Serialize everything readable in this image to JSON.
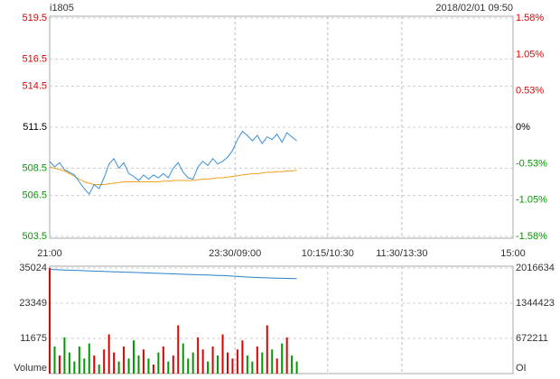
{
  "header": {
    "symbol": "i1805",
    "datetime": "2018/02/01 09:50"
  },
  "chart_data": [
    {
      "type": "line",
      "grid": true,
      "up_color": "#e00000",
      "down_color": "#009900",
      "neutral_color": "#000000",
      "xlim": [
        0,
        375
      ],
      "xticks": [
        {
          "value": 0,
          "label": "21:00"
        },
        {
          "value": 150,
          "label": "23:30/09:00"
        },
        {
          "value": 225,
          "label": "10:15/10:30"
        },
        {
          "value": 285,
          "label": "11:30/13:30"
        },
        {
          "value": 375,
          "label": "15:00"
        }
      ],
      "ylim": [
        503.5,
        519.5
      ],
      "yticks": [
        503.5,
        506.5,
        508.5,
        511.5,
        514.5,
        516.5,
        519.5
      ],
      "y2lim": [
        -1.58,
        1.58
      ],
      "y2ticks": [
        {
          "value": -1.58,
          "label": "-1.58%"
        },
        {
          "value": -1.05,
          "label": "-1.05%"
        },
        {
          "value": -0.53,
          "label": "-0.53%"
        },
        {
          "value": 0,
          "label": "0%"
        },
        {
          "value": 0.53,
          "label": "0.53%"
        },
        {
          "value": 1.05,
          "label": "1.05%"
        },
        {
          "value": 1.58,
          "label": "1.58%"
        }
      ],
      "x": [
        0,
        4,
        8,
        12,
        16,
        20,
        24,
        28,
        32,
        36,
        40,
        44,
        48,
        52,
        56,
        60,
        64,
        68,
        72,
        76,
        80,
        84,
        88,
        92,
        96,
        100,
        104,
        108,
        112,
        116,
        120,
        124,
        128,
        132,
        136,
        140,
        144,
        148,
        152,
        156,
        160,
        164,
        168,
        172,
        176,
        180,
        184,
        188,
        192,
        196,
        200
      ],
      "series": [
        {
          "color": "#3a8fd6",
          "values": [
            509.0,
            508.6,
            508.9,
            508.4,
            508.2,
            508.0,
            507.5,
            507.0,
            506.6,
            507.3,
            507.0,
            507.8,
            508.8,
            509.2,
            508.5,
            508.9,
            508.1,
            507.9,
            507.6,
            508.0,
            507.7,
            508.0,
            507.8,
            508.1,
            507.8,
            508.5,
            508.9,
            508.2,
            507.8,
            507.7,
            508.6,
            509.0,
            508.7,
            509.2,
            508.8,
            509.0,
            509.3,
            509.8,
            510.6,
            511.2,
            510.9,
            510.5,
            510.9,
            510.3,
            510.8,
            510.6,
            511.0,
            510.4,
            511.1,
            510.8,
            510.5
          ]
        },
        {
          "color": "#f0a020",
          "values": [
            508.6,
            508.5,
            508.4,
            508.3,
            508.1,
            507.9,
            507.7,
            507.5,
            507.4,
            507.3,
            507.3,
            507.3,
            507.35,
            507.4,
            507.45,
            507.5,
            507.5,
            507.5,
            507.5,
            507.5,
            507.5,
            507.5,
            507.5,
            507.55,
            507.55,
            507.6,
            507.6,
            507.6,
            507.6,
            507.6,
            507.65,
            507.7,
            507.7,
            507.75,
            507.8,
            507.8,
            507.85,
            507.9,
            507.95,
            508.0,
            508.05,
            508.1,
            508.1,
            508.15,
            508.2,
            508.2,
            508.25,
            508.25,
            508.3,
            508.3,
            508.35
          ]
        }
      ]
    },
    {
      "type": "bar",
      "grid": true,
      "ylabel": "Volume",
      "y2label": "OI",
      "ylim": [
        0,
        35024
      ],
      "yticks": [
        11675,
        23349,
        35024
      ],
      "y2lim": [
        0,
        2016634
      ],
      "y2ticks": [
        672211,
        1344423,
        2016634
      ],
      "x": [
        0,
        4,
        8,
        12,
        16,
        20,
        24,
        28,
        32,
        36,
        40,
        44,
        48,
        52,
        56,
        60,
        64,
        68,
        72,
        76,
        80,
        84,
        88,
        92,
        96,
        100,
        104,
        108,
        112,
        116,
        120,
        124,
        128,
        132,
        136,
        140,
        144,
        148,
        152,
        156,
        160,
        164,
        168,
        172,
        176,
        180,
        184,
        188,
        192,
        196,
        200
      ],
      "series": [
        {
          "values": [
            35024,
            9000,
            6000,
            12000,
            7000,
            4000,
            9000,
            5000,
            10000,
            6000,
            3000,
            8000,
            13000,
            7000,
            4000,
            9000,
            5000,
            11000,
            6000,
            8000,
            5000,
            3000,
            7000,
            9000,
            4000,
            6000,
            16000,
            10000,
            5000,
            7000,
            12000,
            8000,
            4000,
            9000,
            6000,
            13000,
            7000,
            5000,
            8000,
            11000,
            6000,
            4000,
            9000,
            7000,
            16000,
            8000,
            5000,
            10000,
            12000,
            6000,
            4000
          ]
        },
        {
          "axis": "y2",
          "color": "#2a7fc8",
          "values": [
            1990000,
            1985000,
            1982000,
            1978000,
            1975000,
            1972000,
            1968000,
            1965000,
            1962000,
            1958000,
            1955000,
            1952000,
            1948000,
            1945000,
            1942000,
            1938000,
            1935000,
            1932000,
            1928000,
            1925000,
            1922000,
            1918000,
            1915000,
            1912000,
            1908000,
            1905000,
            1902000,
            1898000,
            1895000,
            1892000,
            1888000,
            1885000,
            1882000,
            1878000,
            1875000,
            1872000,
            1868000,
            1862000,
            1856000,
            1850000,
            1845000,
            1840000,
            1836000,
            1832000,
            1828000,
            1825000,
            1822000,
            1820000,
            1818000,
            1816000,
            1815000
          ]
        }
      ]
    }
  ]
}
